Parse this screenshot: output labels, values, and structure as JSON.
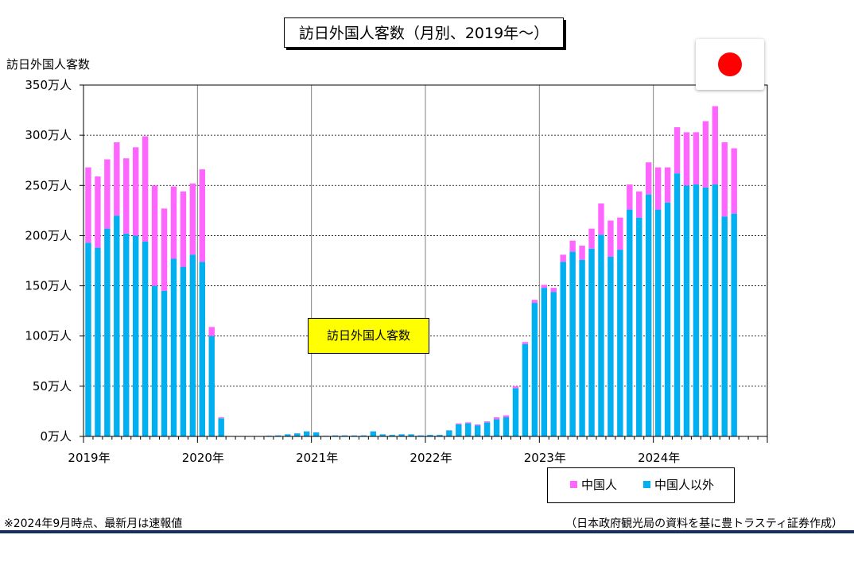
{
  "chart_data": {
    "type": "bar",
    "stacked": true,
    "title": "訪日外国人客数（月別、2019年～）",
    "ylabel": "訪日外国人客数",
    "ylim": [
      0,
      350
    ],
    "yticks": [
      "0万人",
      "50万人",
      "100万人",
      "150万人",
      "200万人",
      "250万人",
      "300万人",
      "350万人"
    ],
    "xtick_labels": [
      "2019年",
      "2020年",
      "2021年",
      "2022年",
      "2023年",
      "2024年"
    ],
    "annotation": "訪日外国人客数",
    "legend_position": "bottom-right",
    "grid": true,
    "unit": "万人",
    "categories": [
      "2019-01",
      "2019-02",
      "2019-03",
      "2019-04",
      "2019-05",
      "2019-06",
      "2019-07",
      "2019-08",
      "2019-09",
      "2019-10",
      "2019-11",
      "2019-12",
      "2020-01",
      "2020-02",
      "2020-03",
      "2020-04",
      "2020-05",
      "2020-06",
      "2020-07",
      "2020-08",
      "2020-09",
      "2020-10",
      "2020-11",
      "2020-12",
      "2021-01",
      "2021-02",
      "2021-03",
      "2021-04",
      "2021-05",
      "2021-06",
      "2021-07",
      "2021-08",
      "2021-09",
      "2021-10",
      "2021-11",
      "2021-12",
      "2022-01",
      "2022-02",
      "2022-03",
      "2022-04",
      "2022-05",
      "2022-06",
      "2022-07",
      "2022-08",
      "2022-09",
      "2022-10",
      "2022-11",
      "2022-12",
      "2023-01",
      "2023-02",
      "2023-03",
      "2023-04",
      "2023-05",
      "2023-06",
      "2023-07",
      "2023-08",
      "2023-09",
      "2023-10",
      "2023-11",
      "2023-12",
      "2024-01",
      "2024-02",
      "2024-03",
      "2024-04",
      "2024-05",
      "2024-06",
      "2024-07",
      "2024-08",
      "2024-09"
    ],
    "series": [
      {
        "name": "中国人以外",
        "color": "#00b0f0",
        "values": [
          193,
          188,
          207,
          220,
          202,
          200,
          194,
          150,
          145,
          177,
          169,
          181,
          174,
          100,
          18,
          0.2,
          0.1,
          0.2,
          0.3,
          0.7,
          1,
          2,
          3,
          5,
          4,
          0.6,
          1,
          1,
          0.9,
          1,
          5,
          2,
          1.5,
          2,
          2,
          1,
          1.5,
          1.5,
          6,
          12,
          13,
          11,
          14,
          17,
          19,
          48,
          92,
          133,
          148,
          144,
          174,
          184,
          176,
          187,
          201,
          179,
          186,
          226,
          218,
          241,
          226,
          233,
          262,
          250,
          251,
          248,
          251,
          219,
          222
        ]
      },
      {
        "name": "中国人",
        "color": "#ff66ff",
        "values": [
          75,
          71,
          69,
          73,
          75,
          88,
          105,
          100,
          82,
          72,
          75,
          71,
          92,
          9,
          1,
          0.1,
          0.1,
          0.1,
          0.1,
          0.1,
          0.1,
          0.1,
          0.1,
          0.1,
          0.1,
          0.1,
          0.1,
          0.1,
          0.1,
          0.1,
          0.1,
          0.1,
          0.1,
          0.1,
          0.1,
          0.1,
          0.1,
          0.1,
          0.1,
          1,
          1,
          1,
          1,
          2,
          2,
          2,
          2,
          3,
          3,
          4,
          7,
          11,
          14,
          20,
          31,
          36,
          32,
          25,
          26,
          32,
          42,
          35,
          46,
          53,
          52,
          66,
          78,
          74,
          65
        ]
      }
    ]
  },
  "legend": {
    "china": "中国人",
    "other": "中国人以外"
  },
  "footnotes": {
    "left": "※2024年9月時点、最新月は速報値",
    "right": "（日本政府観光局の資料を基に豊トラスティ証券作成）"
  },
  "colors": {
    "china": "#ff66ff",
    "other": "#00b0f0",
    "annotation_bg": "#ffff00",
    "flag": "#ff0000",
    "rule": "#16305e"
  }
}
